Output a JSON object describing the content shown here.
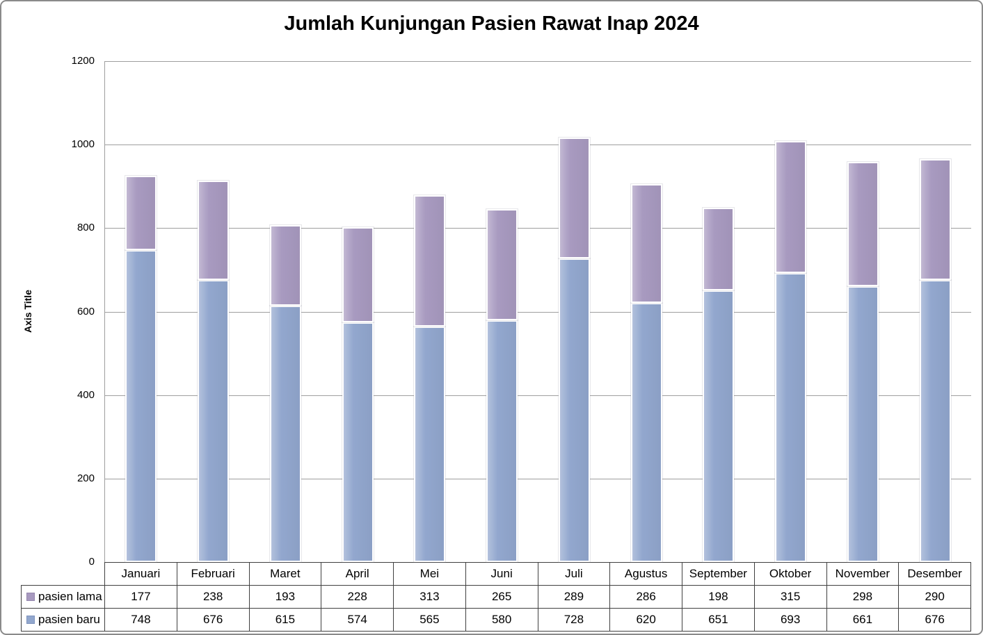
{
  "chart_data": {
    "type": "bar",
    "stacked": true,
    "title": "Jumlah Kunjungan Pasien Rawat Inap 2024",
    "xlabel": "",
    "ylabel": "Axis Title",
    "ylim": [
      0,
      1200
    ],
    "yticks": [
      0,
      200,
      400,
      600,
      800,
      1000,
      1200
    ],
    "grid": true,
    "legend_position": "data-table-left",
    "categories": [
      "Januari",
      "Februari",
      "Maret",
      "April",
      "Mei",
      "Juni",
      "Juli",
      "Agustus",
      "September",
      "Oktober",
      "November",
      "Desember"
    ],
    "series": [
      {
        "name": "pasien baru",
        "color": "#92A7CE",
        "swatch_border": "#7e93bd",
        "stack_order": 0,
        "table_row": 1,
        "values": [
          748,
          676,
          615,
          574,
          565,
          580,
          728,
          620,
          651,
          693,
          661,
          676
        ]
      },
      {
        "name": "pasien lama",
        "color": "#A89AC0",
        "swatch_border": "#9587ad",
        "stack_order": 1,
        "table_row": 0,
        "values": [
          177,
          238,
          193,
          228,
          313,
          265,
          289,
          286,
          198,
          315,
          298,
          290
        ]
      }
    ]
  },
  "colors": {
    "gridline": "#9e9e9e",
    "axis_line": "#9e9e9e",
    "table_border": "#3f3f3f",
    "frame_border": "#8a8a8a",
    "text": "#000000"
  }
}
